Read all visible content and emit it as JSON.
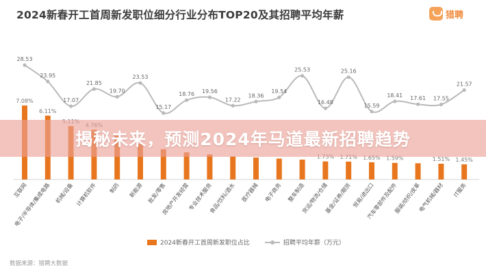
{
  "title": "2024新春开工首周新发职位细分行业分布TOP20及其招聘平均年薪",
  "logo": {
    "text": "猎聘"
  },
  "banner": {
    "text": "揭秘未来，预测2024年马道最新招聘趋势"
  },
  "legend": {
    "bar_label": "2024新春开工首周新发职位占比",
    "line_label": "招聘平均年薪（万元）"
  },
  "source": "数据来源：猎聘大数据",
  "colors": {
    "bar": "#e8761e",
    "line": "#b9b9b9",
    "label": "#777777"
  },
  "chart_data": {
    "type": "bar",
    "categories": [
      "互联网",
      "电子/半导体/集成电路",
      "机械/设备",
      "计算机软件",
      "制药",
      "新能源",
      "批发/零售",
      "房地产开发经营",
      "专业技术服务",
      "食品/饮料/酒水",
      "医疗器械",
      "电子商务",
      "整车制造",
      "货运/物流/仓储",
      "基金/证券/期货",
      "贸易/进出口",
      "汽车零部件及配件",
      "服装/纺织/皮革",
      "电气机械/器材",
      "IT服务"
    ],
    "series": [
      {
        "name": "2024新春开工首周新发职位占比",
        "type": "bar",
        "values": [
          7.08,
          6.11,
          5.11,
          4.76,
          4.2,
          3.4,
          2.9,
          2.6,
          2.4,
          2.2,
          2.1,
          2.0,
          1.9,
          1.73,
          1.71,
          1.65,
          1.59,
          1.55,
          1.51,
          1.45
        ],
        "labels": [
          "7.08%",
          "6.11%",
          "5.11%",
          "4.76%",
          "",
          "",
          "",
          "",
          "",
          "",
          "",
          "",
          "",
          "1.73%",
          "1.71%",
          "1.65%",
          "1.59%",
          "",
          "1.51%",
          "1.45%"
        ]
      },
      {
        "name": "招聘平均年薪（万元）",
        "type": "line",
        "values": [
          28.53,
          23.95,
          17.07,
          21.85,
          19.7,
          23.53,
          15.17,
          18.76,
          19.56,
          17.22,
          18.36,
          19.54,
          25.53,
          16.48,
          25.16,
          15.59,
          18.41,
          17.61,
          17.55,
          21.57
        ]
      }
    ]
  }
}
